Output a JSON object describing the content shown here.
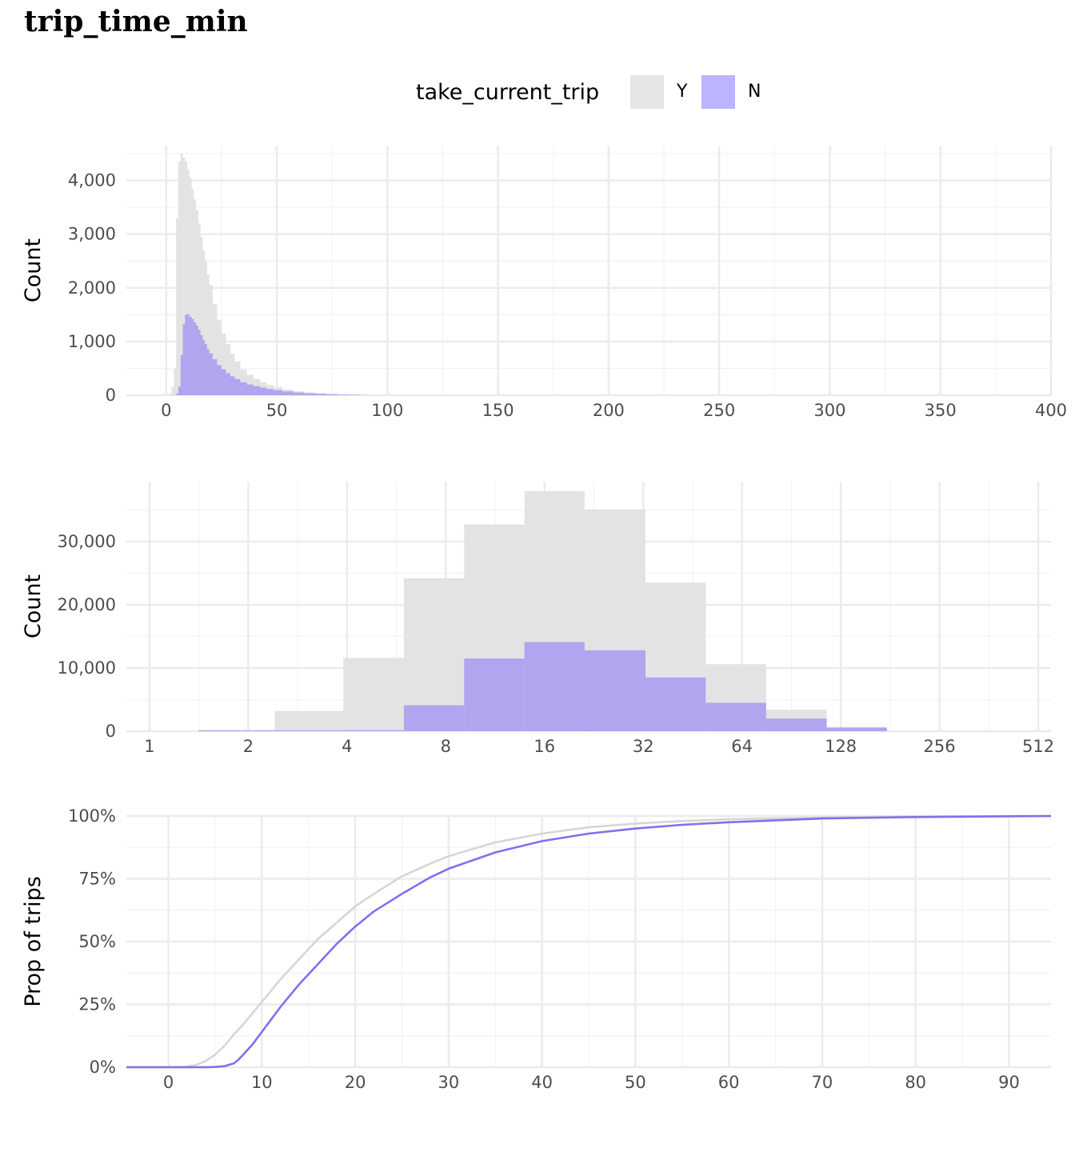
{
  "title": "trip_time_min",
  "legend": {
    "title": "take_current_trip",
    "items": [
      {
        "label": "Y",
        "color": "#e5e5e5"
      },
      {
        "label": "N",
        "color": "#bdb4ff"
      }
    ]
  },
  "colors": {
    "Y": "#d6d6d6",
    "N": "#8070ee",
    "N_fill": "#a597f0",
    "grid": "#ebebeb"
  },
  "chart_data": [
    {
      "type": "bar",
      "subtype": "histogram",
      "title": "",
      "xlabel": "",
      "ylabel": "Count",
      "xlim": [
        -18,
        400
      ],
      "ylim": [
        0,
        4650
      ],
      "grid": true,
      "x_ticks": [
        0,
        50,
        100,
        150,
        200,
        250,
        300,
        350,
        400
      ],
      "x_tick_labels": [
        "0",
        "50",
        "100",
        "150",
        "200",
        "250",
        "300",
        "350",
        "400"
      ],
      "y_ticks": [
        0,
        1000,
        2000,
        3000,
        4000
      ],
      "y_tick_labels": [
        "0",
        "1,000",
        "2,000",
        "3,000",
        "4,000"
      ],
      "series": [
        {
          "name": "Y",
          "x": [
            2,
            3,
            4,
            5,
            6,
            7,
            8,
            9,
            10,
            11,
            12,
            13,
            14,
            15,
            16,
            17,
            18,
            19,
            20,
            22,
            24,
            26,
            28,
            30,
            32,
            35,
            38,
            41,
            44,
            47,
            50,
            55,
            60,
            65,
            70,
            75,
            80,
            85,
            90
          ],
          "values": [
            30,
            150,
            500,
            3300,
            4350,
            4500,
            4420,
            4350,
            4200,
            4050,
            3850,
            3650,
            3450,
            3200,
            2950,
            2700,
            2500,
            2250,
            2050,
            1700,
            1400,
            1150,
            950,
            780,
            630,
            480,
            380,
            300,
            240,
            190,
            150,
            105,
            75,
            52,
            38,
            26,
            18,
            12,
            6
          ]
        },
        {
          "name": "N",
          "x": [
            5,
            6,
            7,
            8,
            9,
            10,
            11,
            12,
            13,
            14,
            15,
            16,
            17,
            18,
            19,
            20,
            22,
            24,
            26,
            28,
            30,
            32,
            35,
            38,
            41,
            44,
            47,
            50,
            55,
            60,
            65,
            70,
            75,
            80,
            85,
            90
          ],
          "values": [
            30,
            160,
            750,
            1320,
            1500,
            1510,
            1460,
            1420,
            1360,
            1300,
            1220,
            1120,
            1030,
            950,
            860,
            780,
            670,
            560,
            480,
            410,
            350,
            300,
            240,
            200,
            170,
            140,
            115,
            95,
            70,
            50,
            35,
            25,
            17,
            12,
            7,
            4
          ]
        }
      ]
    },
    {
      "type": "bar",
      "subtype": "histogram",
      "title": "",
      "xlabel": "",
      "ylabel": "Count",
      "x_scale": "log2",
      "xlim": [
        0.85,
        560
      ],
      "ylim": [
        0,
        39500
      ],
      "grid": true,
      "x_ticks": [
        1,
        2,
        4,
        8,
        16,
        32,
        64,
        128,
        256,
        512
      ],
      "x_tick_labels": [
        "1",
        "2",
        "4",
        "8",
        "16",
        "32",
        "64",
        "128",
        "256",
        "512"
      ],
      "y_ticks": [
        0,
        10000,
        20000,
        30000
      ],
      "y_tick_labels": [
        "0",
        "10,000",
        "20,000",
        "30,000"
      ],
      "bin_edges": [
        1.41,
        2.41,
        3.9,
        5.96,
        9.1,
        13.9,
        21.2,
        32.5,
        49.6,
        75.8,
        116,
        177
      ],
      "series": [
        {
          "name": "Y",
          "values": [
            150,
            3200,
            11600,
            24200,
            32700,
            38000,
            35100,
            23500,
            10600,
            3400,
            500
          ]
        },
        {
          "name": "N",
          "values": [
            150,
            150,
            160,
            4100,
            11500,
            14100,
            12800,
            8500,
            4500,
            2000,
            600
          ]
        }
      ]
    },
    {
      "type": "line",
      "subtype": "ecdf",
      "title": "",
      "xlabel": "",
      "ylabel": "Prop of trips",
      "xlim": [
        -4.5,
        94.5
      ],
      "ylim": [
        0,
        1
      ],
      "grid": true,
      "x_ticks": [
        0,
        10,
        20,
        30,
        40,
        50,
        60,
        70,
        80,
        90
      ],
      "x_tick_labels": [
        "0",
        "10",
        "20",
        "30",
        "40",
        "50",
        "60",
        "70",
        "80",
        "90"
      ],
      "y_ticks": [
        0,
        0.25,
        0.5,
        0.75,
        1
      ],
      "y_tick_labels": [
        "0%",
        "25%",
        "50%",
        "75%",
        "100%"
      ],
      "series": [
        {
          "name": "Y",
          "x": [
            -4.5,
            0,
            2,
            3,
            4,
            5,
            6,
            7,
            8,
            10,
            12,
            14,
            16,
            18,
            20,
            22,
            25,
            28,
            30,
            35,
            40,
            45,
            50,
            55,
            60,
            70,
            80,
            94.5
          ],
          "values": [
            0,
            0,
            0.002,
            0.01,
            0.025,
            0.05,
            0.085,
            0.13,
            0.17,
            0.26,
            0.35,
            0.43,
            0.51,
            0.575,
            0.64,
            0.69,
            0.76,
            0.81,
            0.84,
            0.895,
            0.93,
            0.955,
            0.97,
            0.98,
            0.987,
            0.994,
            0.998,
            1
          ]
        },
        {
          "name": "N",
          "x": [
            -4.5,
            0,
            4,
            5,
            6,
            7,
            7.5,
            8,
            9,
            10,
            12,
            14,
            16,
            18,
            20,
            22,
            25,
            28,
            30,
            35,
            40,
            45,
            50,
            55,
            60,
            70,
            80,
            94.5
          ],
          "values": [
            0,
            0,
            0,
            0.001,
            0.004,
            0.015,
            0.03,
            0.05,
            0.09,
            0.14,
            0.24,
            0.33,
            0.41,
            0.49,
            0.56,
            0.62,
            0.69,
            0.755,
            0.79,
            0.855,
            0.9,
            0.93,
            0.95,
            0.965,
            0.975,
            0.99,
            0.996,
            1
          ]
        }
      ]
    }
  ]
}
